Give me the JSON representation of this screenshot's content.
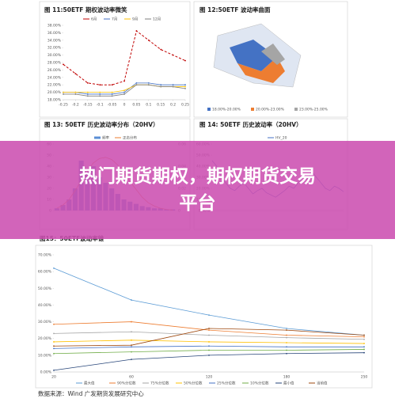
{
  "chart_data": [
    {
      "type": "line",
      "title": "图 11:50ETF 期权波动率微笑",
      "x": [
        -0.25,
        -0.2,
        -0.15,
        -0.1,
        -0.05,
        0,
        0.05,
        0.1,
        0.15,
        0.2,
        0.25
      ],
      "xlim": [
        -0.25,
        0.25
      ],
      "xticks": [
        -0.25,
        -0.2,
        -0.15,
        -0.1,
        -0.05,
        0,
        0.05,
        0.1,
        0.15,
        0.2,
        0.25
      ],
      "ylim": [
        18,
        38
      ],
      "yticks": [
        {
          "value": 18,
          "label": "18.00%"
        },
        {
          "value": 20,
          "label": "20.00%"
        },
        {
          "value": 22,
          "label": "22.00%"
        },
        {
          "value": 24,
          "label": "24.00%"
        },
        {
          "value": 26,
          "label": "26.00%"
        },
        {
          "value": 28,
          "label": "28.00%"
        },
        {
          "value": 30,
          "label": "30.00%"
        },
        {
          "value": 32,
          "label": "32.00%"
        },
        {
          "value": 34,
          "label": "34.00%"
        },
        {
          "value": 36,
          "label": "36.00%"
        },
        {
          "value": 38,
          "label": "38.00%"
        }
      ],
      "grid": false,
      "legend": "top",
      "series": [
        {
          "name": "6月",
          "color": "#c00000",
          "dash": true,
          "values": [
            27.5,
            25,
            22.5,
            22,
            22,
            23,
            36.5,
            34,
            31.5,
            30,
            28.5
          ]
        },
        {
          "name": "7月",
          "color": "#4472c4",
          "values": [
            20,
            20,
            19.5,
            19.5,
            19.5,
            20,
            22.5,
            22.5,
            22,
            22,
            22
          ]
        },
        {
          "name": "9月",
          "color": "#ffc000",
          "values": [
            20,
            20,
            20,
            20,
            20,
            20.5,
            22,
            22,
            21.5,
            21.5,
            21.5
          ]
        },
        {
          "name": "12月",
          "color": "#7f7f7f",
          "values": [
            19.5,
            19.5,
            19,
            19,
            19,
            19.5,
            22,
            22,
            21.5,
            21.5,
            21
          ]
        }
      ]
    },
    {
      "type": "bar",
      "title": "图 13: 50ETF 历史波动率分布（20HV）",
      "categories": [
        null,
        null,
        null,
        null,
        null,
        null,
        null,
        null,
        null,
        null,
        null,
        null,
        null,
        null,
        null,
        null,
        null,
        null,
        null,
        null
      ],
      "ylim": [
        0,
        60
      ],
      "yticks": [
        0,
        10,
        20,
        30,
        40,
        50,
        60
      ],
      "y2lim": [
        0,
        0.06
      ],
      "y2ticks": [
        0,
        0.02,
        0.04,
        0.06
      ],
      "grid": false,
      "legend": "top",
      "series": [
        {
          "name": "频率",
          "color": "#5b8fd5",
          "values": [
            2,
            5,
            10,
            20,
            45,
            35,
            40,
            30,
            25,
            20,
            15,
            10,
            8,
            6,
            4,
            3,
            2,
            2,
            1,
            1
          ]
        },
        {
          "name": "正态分布",
          "color": "#ed7d31",
          "axis": "y2",
          "values": [
            0.002,
            0.005,
            0.01,
            0.018,
            0.027,
            0.036,
            0.043,
            0.047,
            0.048,
            0.046,
            0.041,
            0.034,
            0.026,
            0.019,
            0.012,
            0.007,
            0.004,
            0.002,
            0.001,
            0.0005
          ]
        }
      ]
    },
    {
      "type": "line",
      "title": "图 14: 50ETF 历史波动率（20HV）",
      "categories": [
        null,
        null,
        null,
        null,
        null,
        null,
        null,
        null,
        null,
        null,
        null,
        null,
        null,
        null,
        null,
        null,
        null,
        null,
        null,
        null,
        null,
        null,
        null,
        null,
        null,
        null,
        null,
        null,
        null,
        null
      ],
      "ylim": [
        0,
        60
      ],
      "yticks": [
        {
          "value": 0,
          "label": "0.00%"
        },
        {
          "value": 10,
          "label": "10.00%"
        },
        {
          "value": 20,
          "label": "20.00%"
        },
        {
          "value": 30,
          "label": "30.00%"
        },
        {
          "value": 40,
          "label": "40.00%"
        },
        {
          "value": 50,
          "label": "50.00%"
        },
        {
          "value": 60,
          "label": "60.00%"
        }
      ],
      "grid": false,
      "legend": "top",
      "series": [
        {
          "name": "HV_20",
          "color": "#4472c4",
          "values": [
            45,
            40,
            30,
            25,
            20,
            18,
            22,
            25,
            20,
            15,
            18,
            20,
            16,
            14,
            12,
            15,
            18,
            22,
            20,
            25,
            30,
            28,
            35,
            30,
            25,
            20,
            18,
            22,
            20,
            17
          ]
        }
      ]
    },
    {
      "type": "line",
      "title": "图15：50ETF波动率锥",
      "categories": [
        "20",
        "60",
        "120",
        "180",
        "250"
      ],
      "ylim": [
        0,
        70
      ],
      "yticks": [
        {
          "value": 0,
          "label": "0.00%"
        },
        {
          "value": 10,
          "label": "10.00%"
        },
        {
          "value": 20,
          "label": "20.00%"
        },
        {
          "value": 30,
          "label": "30.00%"
        },
        {
          "value": 40,
          "label": "40.00%"
        },
        {
          "value": 50,
          "label": "50.00%"
        },
        {
          "value": 60,
          "label": "60.00%"
        },
        {
          "value": 70,
          "label": "70.00%"
        }
      ],
      "grid": false,
      "legend": "bottom",
      "series": [
        {
          "name": "最大值",
          "color": "#5b9bd5",
          "values": [
            62,
            43,
            34,
            26,
            22
          ]
        },
        {
          "name": "90%分位数",
          "color": "#ed7d31",
          "values": [
            28.5,
            30,
            25,
            22,
            21
          ]
        },
        {
          "name": "75%分位数",
          "color": "#a5a5a5",
          "values": [
            23,
            24,
            22,
            20.5,
            19.5
          ]
        },
        {
          "name": "50%分位数",
          "color": "#ffc000",
          "values": [
            18,
            19,
            18,
            17.5,
            17
          ]
        },
        {
          "name": "25%分位数",
          "color": "#4472c4",
          "values": [
            14,
            15,
            15.5,
            15,
            15
          ]
        },
        {
          "name": "10%分位数",
          "color": "#70ad47",
          "values": [
            11,
            12,
            13,
            13,
            13.5
          ]
        },
        {
          "name": "最小值",
          "color": "#264478",
          "values": [
            1,
            7.5,
            10,
            11,
            11.5
          ]
        },
        {
          "name": "当前值",
          "color": "#9e480e",
          "values": [
            15.5,
            16,
            26,
            25,
            22
          ]
        }
      ]
    }
  ],
  "surface_panel": {
    "title": "图 12:50ETF 波动率曲面",
    "legend": [
      "18.00%-20.00%",
      "20.00%-23.00%",
      "23.00%-25.00%"
    ]
  },
  "banner": {
    "title": "热门期货期权，期权期货交易平台"
  },
  "source": "数据来源：Wind 广发期货发展研究中心"
}
